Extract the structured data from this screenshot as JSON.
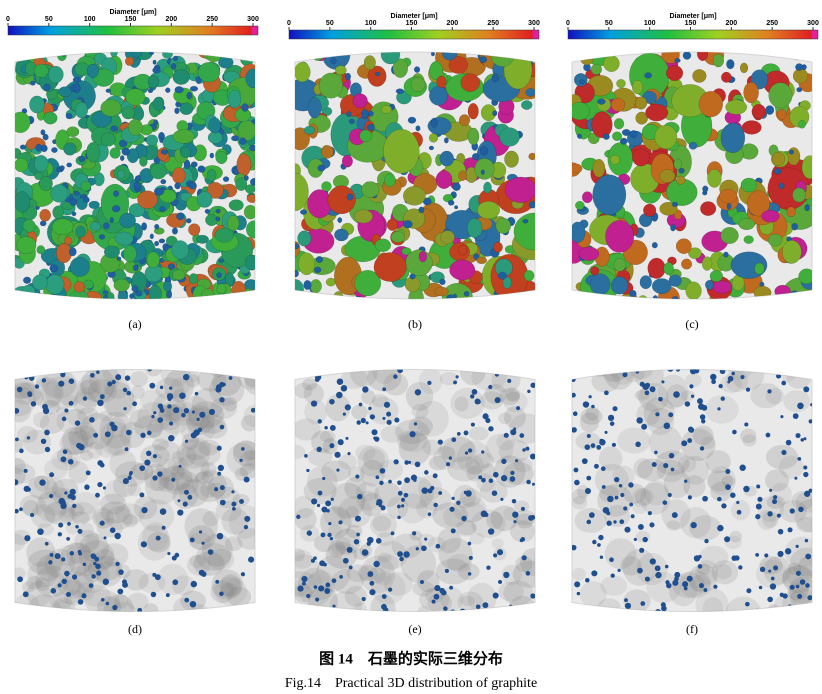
{
  "panels": [
    {
      "label": "(a)",
      "colorbar": {
        "title": "Diameter [μm]",
        "ticks": [
          0,
          50,
          100,
          150,
          200,
          250,
          300
        ]
      }
    },
    {
      "label": "(b)",
      "colorbar": {
        "title": "Diameter [μm]",
        "ticks": [
          0,
          50,
          100,
          150,
          200,
          250,
          300
        ]
      }
    },
    {
      "label": "(c)",
      "colorbar": {
        "title": "Diameter [μm]",
        "ticks": [
          0,
          50,
          100,
          150,
          200,
          250,
          300
        ]
      }
    },
    {
      "label": "(d)"
    },
    {
      "label": "(e)"
    },
    {
      "label": "(f)"
    }
  ],
  "caption": {
    "zh": "图 14　石墨的实际三维分布",
    "en": "Fig.14　Practical 3D distribution of graphite"
  }
}
